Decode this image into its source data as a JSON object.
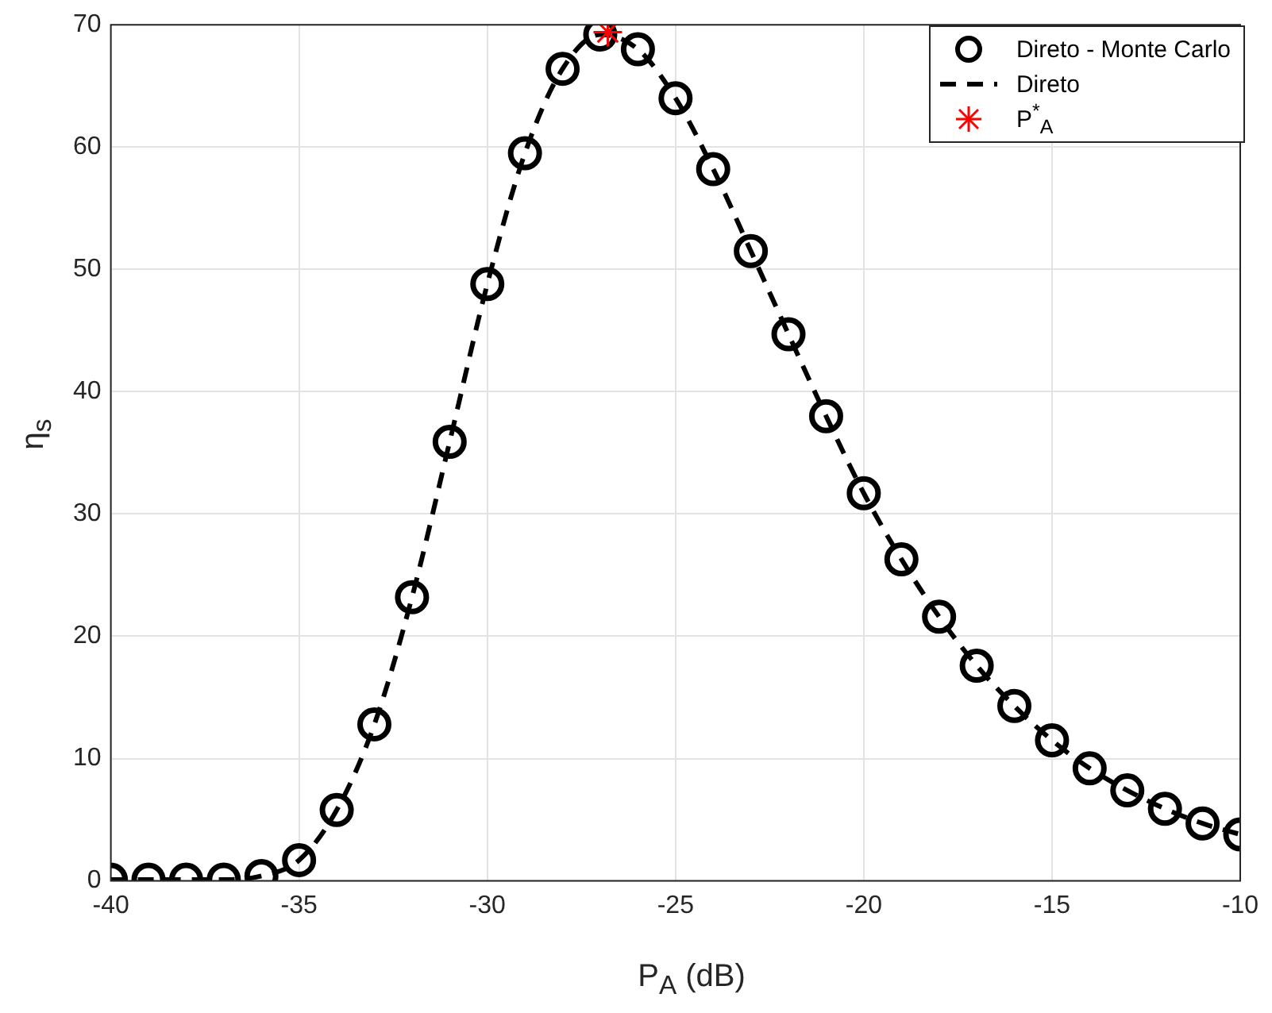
{
  "chart_data": {
    "type": "scatter",
    "xlabel": "P$_{A}$ (dB)",
    "ylabel": "η$_{s}$",
    "x": [
      -40,
      -39,
      -38,
      -37,
      -36,
      -35,
      -34,
      -33,
      -32,
      -31,
      -30,
      -29,
      -28,
      -27,
      -26,
      -25,
      -24,
      -23,
      -22,
      -21,
      -20,
      -19,
      -18,
      -17,
      -16,
      -15,
      -14,
      -13,
      -12,
      -11,
      -10
    ],
    "series": [
      {
        "name": "Direto - Monte Carlo",
        "type": "scatter",
        "marker": "circle",
        "color": "#000000",
        "values": [
          0.1,
          0.1,
          0.1,
          0.1,
          0.4,
          1.7,
          5.8,
          12.8,
          23.2,
          35.9,
          48.8,
          59.5,
          66.4,
          69.2,
          68.0,
          64.0,
          58.2,
          51.5,
          44.7,
          38.0,
          31.7,
          26.3,
          21.6,
          17.6,
          14.3,
          11.5,
          9.2,
          7.4,
          5.9,
          4.7,
          3.8
        ]
      },
      {
        "name": "Direto",
        "type": "line",
        "marker": "none",
        "line_style": "dashed",
        "color": "#000000",
        "values": [
          0.1,
          0.1,
          0.1,
          0.1,
          0.4,
          1.7,
          5.8,
          12.8,
          23.2,
          35.9,
          48.8,
          59.5,
          66.4,
          69.2,
          68.0,
          64.0,
          58.2,
          51.5,
          44.7,
          38.0,
          31.7,
          26.3,
          21.6,
          17.6,
          14.3,
          11.5,
          9.2,
          7.4,
          5.9,
          4.7,
          3.8
        ]
      },
      {
        "name": "P$^{*}$$_{A}$",
        "type": "scatter",
        "marker": "cross",
        "color": "#ff0000",
        "x": [
          -26.8
        ],
        "values": [
          69.4
        ]
      }
    ],
    "xlim": [
      -40,
      -10
    ],
    "xticks": [
      -40,
      -35,
      -30,
      -25,
      -20,
      -15,
      -10
    ],
    "ylim": [
      0,
      70
    ],
    "yticks": [
      0,
      10,
      20,
      30,
      40,
      50,
      60,
      70
    ],
    "grid": true,
    "legend": "top right"
  }
}
